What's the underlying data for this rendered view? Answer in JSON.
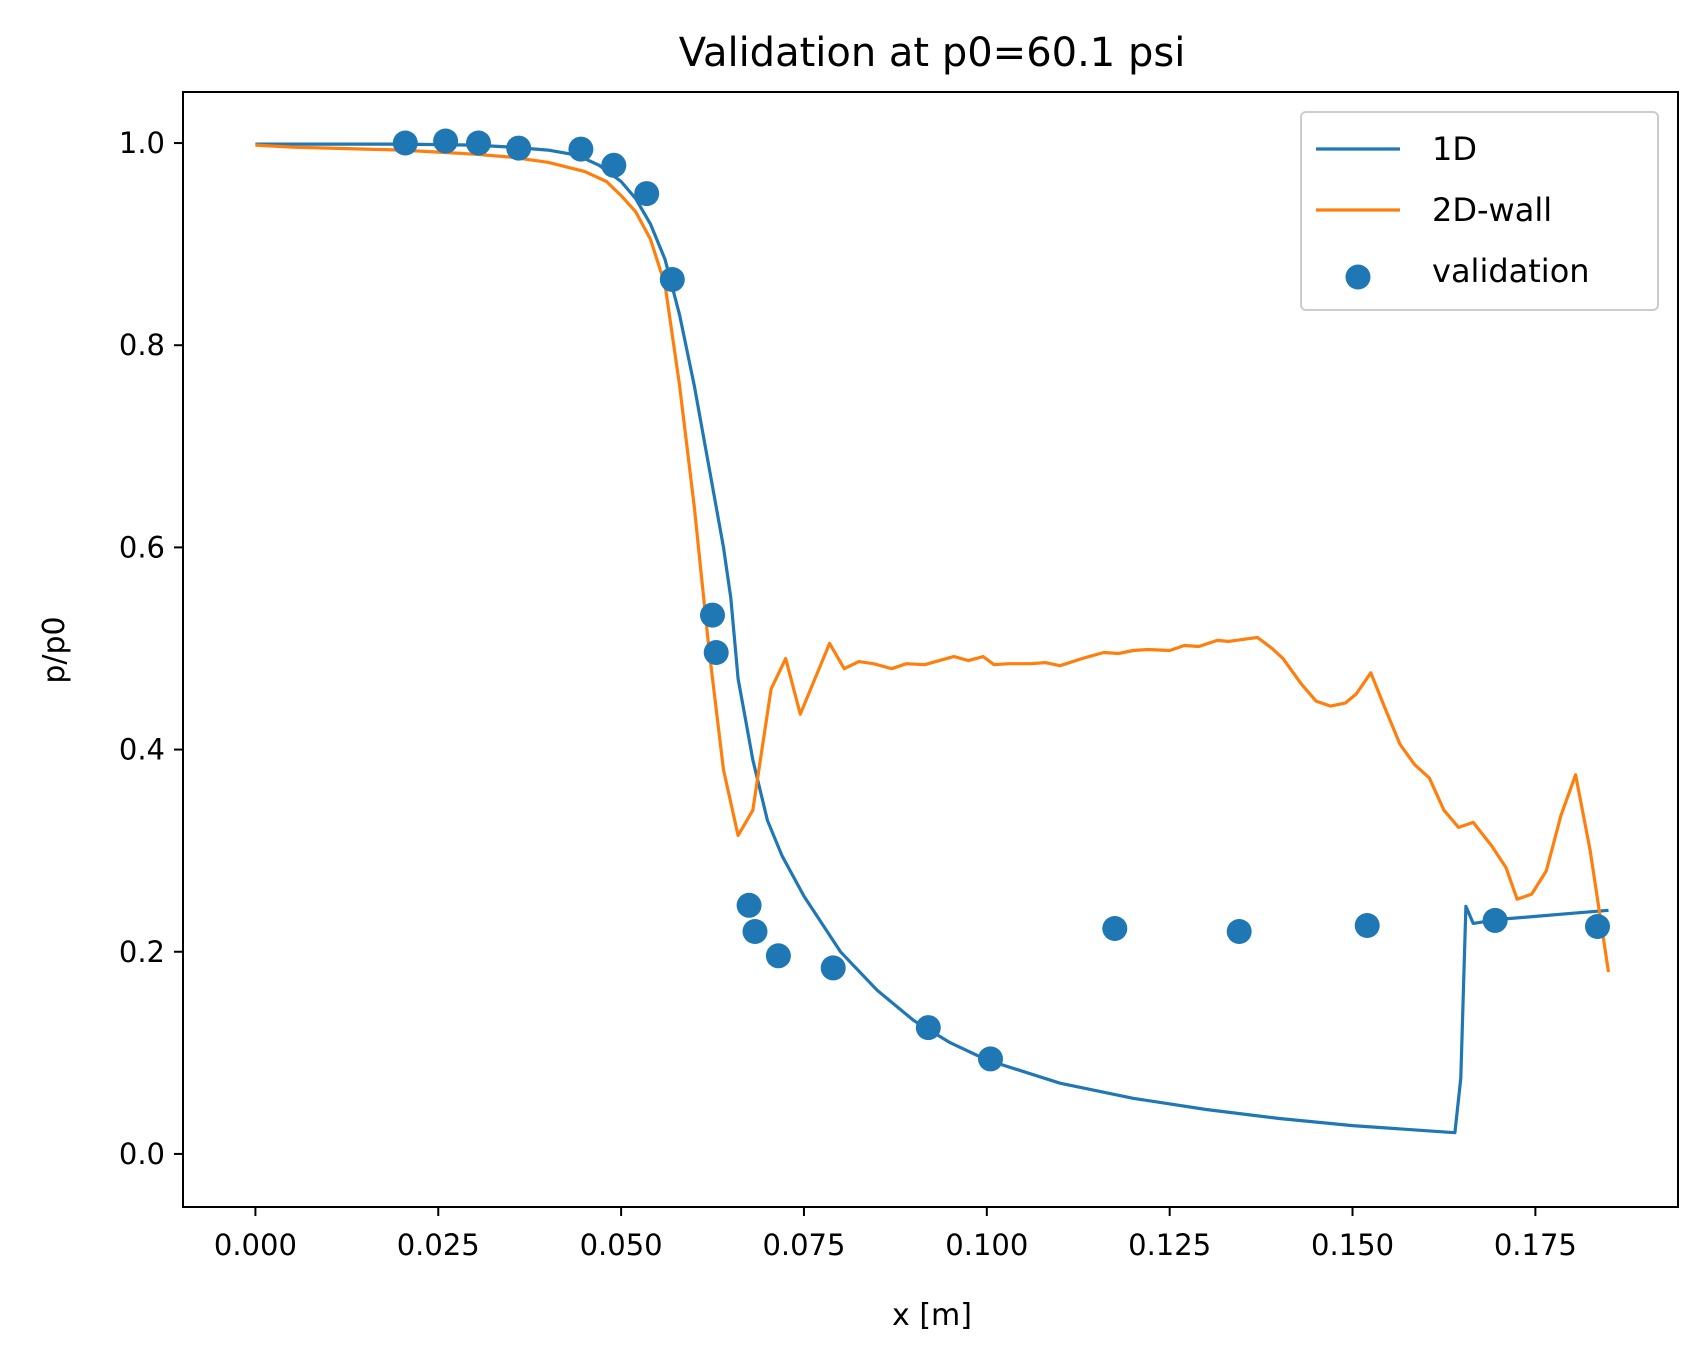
{
  "chart_data": {
    "type": "line",
    "title": "Validation at p0=60.1 psi",
    "xlabel": "x [m]",
    "ylabel": "p/p0",
    "xlim": [
      -0.0099,
      0.1945
    ],
    "ylim": [
      -0.0525,
      1.0505
    ],
    "xticks": [
      0.0,
      0.025,
      0.05,
      0.075,
      0.1,
      0.125,
      0.15,
      0.175
    ],
    "xtick_labels": [
      "0.000",
      "0.025",
      "0.050",
      "0.075",
      "0.100",
      "0.125",
      "0.150",
      "0.175"
    ],
    "yticks": [
      0.0,
      0.2,
      0.4,
      0.6,
      0.8,
      1.0
    ],
    "ytick_labels": [
      "0.0",
      "0.2",
      "0.4",
      "0.6",
      "0.8",
      "1.0"
    ],
    "grid": false,
    "legend_position": "top-right",
    "series": [
      {
        "name": "1D",
        "kind": "line",
        "color": "#1f77b4",
        "points": [
          [
            0.0,
            0.999
          ],
          [
            0.01,
            0.999
          ],
          [
            0.02,
            0.999
          ],
          [
            0.03,
            0.998
          ],
          [
            0.035,
            0.996
          ],
          [
            0.04,
            0.993
          ],
          [
            0.044,
            0.988
          ],
          [
            0.047,
            0.978
          ],
          [
            0.05,
            0.962
          ],
          [
            0.052,
            0.945
          ],
          [
            0.054,
            0.92
          ],
          [
            0.056,
            0.885
          ],
          [
            0.058,
            0.83
          ],
          [
            0.06,
            0.76
          ],
          [
            0.062,
            0.68
          ],
          [
            0.064,
            0.6
          ],
          [
            0.065,
            0.55
          ],
          [
            0.066,
            0.47
          ],
          [
            0.067,
            0.43
          ],
          [
            0.068,
            0.39
          ],
          [
            0.07,
            0.33
          ],
          [
            0.072,
            0.295
          ],
          [
            0.075,
            0.255
          ],
          [
            0.08,
            0.2
          ],
          [
            0.085,
            0.162
          ],
          [
            0.09,
            0.132
          ],
          [
            0.095,
            0.11
          ],
          [
            0.1,
            0.093
          ],
          [
            0.11,
            0.07
          ],
          [
            0.12,
            0.055
          ],
          [
            0.13,
            0.044
          ],
          [
            0.14,
            0.035
          ],
          [
            0.15,
            0.028
          ],
          [
            0.16,
            0.023
          ],
          [
            0.164,
            0.021
          ],
          [
            0.1648,
            0.075
          ],
          [
            0.1655,
            0.245
          ],
          [
            0.1665,
            0.228
          ],
          [
            0.17,
            0.232
          ],
          [
            0.175,
            0.235
          ],
          [
            0.18,
            0.238
          ],
          [
            0.185,
            0.241
          ]
        ]
      },
      {
        "name": "2D-wall",
        "kind": "line",
        "color": "#ff7f0e",
        "points": [
          [
            0.0,
            0.998
          ],
          [
            0.005,
            0.996
          ],
          [
            0.01,
            0.995
          ],
          [
            0.015,
            0.994
          ],
          [
            0.02,
            0.993
          ],
          [
            0.025,
            0.991
          ],
          [
            0.03,
            0.989
          ],
          [
            0.035,
            0.986
          ],
          [
            0.04,
            0.981
          ],
          [
            0.045,
            0.972
          ],
          [
            0.048,
            0.962
          ],
          [
            0.05,
            0.948
          ],
          [
            0.052,
            0.932
          ],
          [
            0.054,
            0.905
          ],
          [
            0.056,
            0.86
          ],
          [
            0.058,
            0.76
          ],
          [
            0.06,
            0.64
          ],
          [
            0.062,
            0.5
          ],
          [
            0.064,
            0.38
          ],
          [
            0.066,
            0.315
          ],
          [
            0.068,
            0.34
          ],
          [
            0.0705,
            0.46
          ],
          [
            0.0725,
            0.49
          ],
          [
            0.0745,
            0.435
          ],
          [
            0.0765,
            0.47
          ],
          [
            0.0785,
            0.505
          ],
          [
            0.0805,
            0.48
          ],
          [
            0.0825,
            0.487
          ],
          [
            0.0845,
            0.485
          ],
          [
            0.087,
            0.48
          ],
          [
            0.089,
            0.485
          ],
          [
            0.0915,
            0.484
          ],
          [
            0.0935,
            0.488
          ],
          [
            0.0955,
            0.492
          ],
          [
            0.0975,
            0.488
          ],
          [
            0.0995,
            0.492
          ],
          [
            0.101,
            0.484
          ],
          [
            0.103,
            0.485
          ],
          [
            0.106,
            0.485
          ],
          [
            0.108,
            0.486
          ],
          [
            0.11,
            0.483
          ],
          [
            0.113,
            0.49
          ],
          [
            0.116,
            0.496
          ],
          [
            0.118,
            0.495
          ],
          [
            0.12,
            0.498
          ],
          [
            0.122,
            0.499
          ],
          [
            0.125,
            0.498
          ],
          [
            0.127,
            0.503
          ],
          [
            0.129,
            0.502
          ],
          [
            0.1315,
            0.508
          ],
          [
            0.133,
            0.507
          ],
          [
            0.137,
            0.511
          ],
          [
            0.139,
            0.5
          ],
          [
            0.1405,
            0.49
          ],
          [
            0.143,
            0.465
          ],
          [
            0.145,
            0.448
          ],
          [
            0.147,
            0.443
          ],
          [
            0.149,
            0.446
          ],
          [
            0.1505,
            0.455
          ],
          [
            0.1525,
            0.476
          ],
          [
            0.1545,
            0.44
          ],
          [
            0.1565,
            0.405
          ],
          [
            0.1585,
            0.385
          ],
          [
            0.1605,
            0.372
          ],
          [
            0.1625,
            0.34
          ],
          [
            0.1645,
            0.323
          ],
          [
            0.1665,
            0.328
          ],
          [
            0.169,
            0.305
          ],
          [
            0.171,
            0.283
          ],
          [
            0.1725,
            0.252
          ],
          [
            0.1745,
            0.257
          ],
          [
            0.1765,
            0.28
          ],
          [
            0.1785,
            0.335
          ],
          [
            0.1805,
            0.375
          ],
          [
            0.1825,
            0.3
          ],
          [
            0.185,
            0.18
          ]
        ]
      },
      {
        "name": "validation",
        "kind": "scatter",
        "color": "#1f77b4",
        "points": [
          [
            0.0205,
            1.0
          ],
          [
            0.026,
            1.002
          ],
          [
            0.0305,
            1.0
          ],
          [
            0.036,
            0.995
          ],
          [
            0.0445,
            0.994
          ],
          [
            0.049,
            0.978
          ],
          [
            0.0535,
            0.95
          ],
          [
            0.057,
            0.865
          ],
          [
            0.0625,
            0.533
          ],
          [
            0.063,
            0.496
          ],
          [
            0.0675,
            0.246
          ],
          [
            0.0683,
            0.22
          ],
          [
            0.0715,
            0.196
          ],
          [
            0.079,
            0.184
          ],
          [
            0.092,
            0.125
          ],
          [
            0.1005,
            0.094
          ],
          [
            0.1175,
            0.223
          ],
          [
            0.1345,
            0.22
          ],
          [
            0.152,
            0.226
          ],
          [
            0.1695,
            0.231
          ],
          [
            0.1835,
            0.225
          ]
        ]
      }
    ]
  }
}
